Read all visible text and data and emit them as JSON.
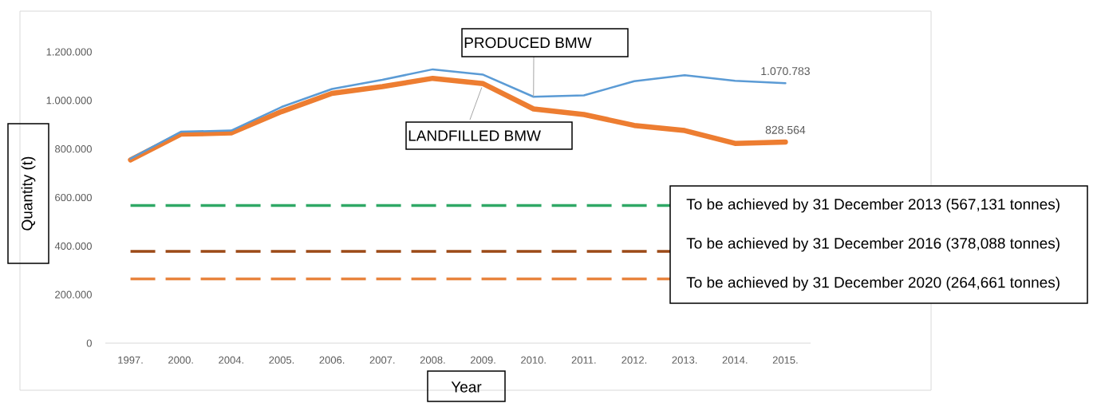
{
  "chart_data": {
    "type": "line",
    "xlabel": "Year",
    "ylabel": "Quantity (t)",
    "categories": [
      "1997.",
      "2000.",
      "2004.",
      "2005.",
      "2006.",
      "2007.",
      "2008.",
      "2009.",
      "2010.",
      "2011.",
      "2012.",
      "2013.",
      "2014.",
      "2015."
    ],
    "series": [
      {
        "name": "PRODUCED BMW",
        "color": "#5b9bd5",
        "values": [
          760000,
          871000,
          876000,
          973000,
          1047000,
          1085000,
          1128000,
          1106000,
          1015000,
          1021000,
          1079000,
          1104000,
          1081000,
          1070783
        ],
        "value_labels": [
          null,
          null,
          null,
          null,
          null,
          null,
          null,
          null,
          null,
          null,
          null,
          null,
          null,
          "1.070.783"
        ]
      },
      {
        "name": "LANDFILLED BMW",
        "color": "#ed7d31",
        "values": [
          755000,
          861000,
          866000,
          954000,
          1029000,
          1057000,
          1091000,
          1069000,
          965000,
          942000,
          897000,
          876000,
          823000,
          828564
        ],
        "value_labels": [
          null,
          null,
          null,
          null,
          null,
          null,
          null,
          null,
          null,
          null,
          null,
          null,
          null,
          "828.564"
        ]
      }
    ],
    "ylim": [
      0,
      1200000
    ],
    "yticks": [
      0,
      {
        "value": 200000,
        "label": "200.000"
      },
      {
        "value": 400000,
        "label": "400.000"
      },
      {
        "value": 600000,
        "label": "600.000"
      },
      {
        "value": 800000,
        "label": "800.000"
      },
      {
        "value": 1000000,
        "label": "1.000.000"
      },
      {
        "value": 1200000,
        "label": "1.200.000"
      }
    ],
    "ref_lines": [
      {
        "axis": "y",
        "value": 567131,
        "label": "To be achieved by 31 December 2013 (567,131 tonnes)",
        "color": "#2fa866",
        "line_style": "dashed"
      },
      {
        "axis": "y",
        "value": 378088,
        "label": "To be achieved by 31 December 2016 (378,088 tonnes)",
        "color": "#9c4a17",
        "line_style": "dashed"
      },
      {
        "axis": "y",
        "value": 264661,
        "label": "To be achieved by 31 December 2020 (264,661 tonnes)",
        "color": "#e8843e",
        "line_style": "dashed"
      }
    ]
  }
}
